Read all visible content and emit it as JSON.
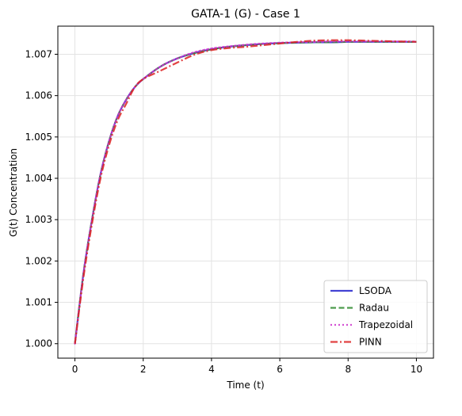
{
  "chart_data": {
    "type": "line",
    "title": "GATA-1 (G) - Case 1",
    "xlabel": "Time (t)",
    "ylabel": "G(t) Concentration",
    "xlim": [
      -0.5,
      10.5
    ],
    "ylim": [
      0.99965,
      1.00768
    ],
    "xticks": [
      0,
      2,
      4,
      6,
      8,
      10
    ],
    "xtick_labels": [
      "0",
      "2",
      "4",
      "6",
      "8",
      "10"
    ],
    "yticks": [
      1.0,
      1.001,
      1.002,
      1.003,
      1.004,
      1.005,
      1.006,
      1.007
    ],
    "ytick_labels": [
      "1.000",
      "1.001",
      "1.002",
      "1.003",
      "1.004",
      "1.005",
      "1.006",
      "1.007"
    ],
    "grid": true,
    "legend_position": "lower-right",
    "x": [
      0,
      0.25,
      0.5,
      0.75,
      1,
      1.25,
      1.5,
      1.75,
      2,
      2.5,
      3,
      3.5,
      4,
      4.5,
      5,
      5.5,
      6,
      6.5,
      7,
      7.5,
      8,
      8.5,
      9,
      9.5,
      10
    ],
    "series": [
      {
        "name": "LSODA",
        "color": "#2222cc",
        "dash": "solid",
        "values": [
          1.0,
          1.0017,
          1.003,
          1.0041,
          1.0049,
          1.0055,
          1.0059,
          1.0062,
          1.0064,
          1.0067,
          1.0069,
          1.00703,
          1.00712,
          1.00718,
          1.00722,
          1.00725,
          1.00727,
          1.00728,
          1.00729,
          1.00729,
          1.0073,
          1.0073,
          1.0073,
          1.0073,
          1.0073
        ]
      },
      {
        "name": "Radau",
        "color": "#2e8b2e",
        "dash": "dashed",
        "values": [
          1.0,
          1.0017,
          1.003,
          1.0041,
          1.0049,
          1.0055,
          1.0059,
          1.0062,
          1.0064,
          1.0067,
          1.0069,
          1.00703,
          1.00712,
          1.00718,
          1.00722,
          1.00725,
          1.00727,
          1.00728,
          1.00729,
          1.00729,
          1.0073,
          1.0073,
          1.0073,
          1.0073,
          1.0073
        ]
      },
      {
        "name": "Trapezoidal",
        "color": "#cc33cc",
        "dash": "dotted",
        "values": [
          1.0,
          1.0017,
          1.003,
          1.0041,
          1.0049,
          1.0055,
          1.0059,
          1.0062,
          1.0064,
          1.0067,
          1.0069,
          1.00705,
          1.00714,
          1.00719,
          1.00723,
          1.00726,
          1.00728,
          1.00729,
          1.0073,
          1.00731,
          1.00731,
          1.00731,
          1.00731,
          1.00731,
          1.00731
        ]
      },
      {
        "name": "PINN",
        "color": "#dd2222",
        "dash": "dashdot",
        "values": [
          1.0,
          1.0016,
          1.0029,
          1.004,
          1.0048,
          1.0054,
          1.0058,
          1.0062,
          1.0064,
          1.0066,
          1.0068,
          1.00699,
          1.0071,
          1.00715,
          1.00718,
          1.00722,
          1.00726,
          1.0073,
          1.00733,
          1.00734,
          1.00734,
          1.00733,
          1.00732,
          1.00731,
          1.0073
        ]
      }
    ]
  }
}
